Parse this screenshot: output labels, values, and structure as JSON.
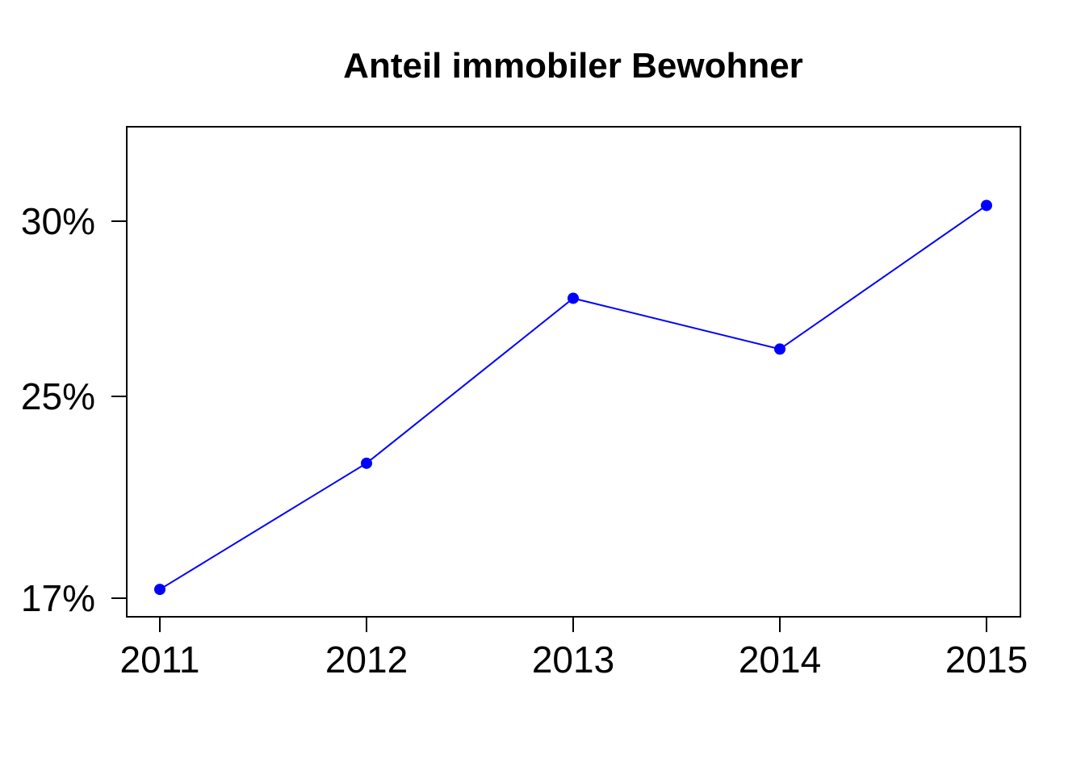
{
  "chart_data": {
    "type": "line",
    "title": "Anteil immobiler Bewohner",
    "xlabel": "",
    "ylabel": "",
    "x": [
      "2011",
      "2012",
      "2013",
      "2014",
      "2015"
    ],
    "series": [
      {
        "values": [
          17.35,
          22.35,
          27.8,
          26.35,
          30.45
        ]
      }
    ],
    "ytick_values": [
      17,
      25,
      30
    ],
    "ytick_labels": [
      "17%",
      "25%",
      "30%"
    ],
    "line_color": "#0000ff",
    "grid": false,
    "legend": "none"
  }
}
